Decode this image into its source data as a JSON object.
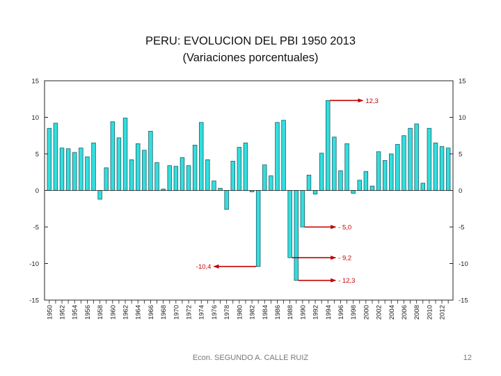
{
  "slide": {
    "title": "PERU: EVOLUCION DEL PBI 1950 2013",
    "subtitle": "(Variaciones porcentuales)",
    "footer": "Econ. SEGUNDO A. CALLE RUIZ",
    "page_number": "12"
  },
  "colors": {
    "bar_fill": "#33dede",
    "bar_stroke": "#1a5c66",
    "annotation": "#c00000",
    "axis": "#222222"
  },
  "chart_data": {
    "type": "bar",
    "title": "PERU: EVOLUCION DEL PBI 1950 2013",
    "subtitle": "(Variaciones porcentuales)",
    "xlabel": "",
    "ylabel": "",
    "ylim": [
      -15,
      15
    ],
    "yticks": [
      15,
      10,
      5,
      0,
      -5,
      -10,
      -15
    ],
    "ytick_labels": [
      "15",
      "10",
      "5",
      "0",
      "-5",
      "-10",
      "-15"
    ],
    "grid": false,
    "legend": "none",
    "categories": [
      1950,
      1951,
      1952,
      1953,
      1954,
      1955,
      1956,
      1957,
      1958,
      1959,
      1960,
      1961,
      1962,
      1963,
      1964,
      1965,
      1966,
      1967,
      1968,
      1969,
      1970,
      1971,
      1972,
      1973,
      1974,
      1975,
      1976,
      1977,
      1978,
      1979,
      1980,
      1981,
      1982,
      1983,
      1984,
      1985,
      1986,
      1987,
      1988,
      1989,
      1990,
      1991,
      1992,
      1993,
      1994,
      1995,
      1996,
      1997,
      1998,
      1999,
      2000,
      2001,
      2002,
      2003,
      2004,
      2005,
      2006,
      2007,
      2008,
      2009,
      2010,
      2011,
      2012,
      2013
    ],
    "x_tick_labels": [
      "1950",
      "1952",
      "1954",
      "1956",
      "1958",
      "1960",
      "1962",
      "1964",
      "1966",
      "1968",
      "1970",
      "1972",
      "1974",
      "1976",
      "1978",
      "1980",
      "1982",
      "1984",
      "1986",
      "1988",
      "1990",
      "1992",
      "1994",
      "1996",
      "1998",
      "2000",
      "2002",
      "2004",
      "2006",
      "2008",
      "2010",
      "2012"
    ],
    "values": [
      8.5,
      9.2,
      5.8,
      5.7,
      5.2,
      5.8,
      4.6,
      6.5,
      -1.2,
      3.1,
      9.4,
      7.2,
      9.9,
      4.2,
      6.4,
      5.5,
      8.1,
      3.8,
      0.2,
      3.4,
      3.3,
      4.5,
      3.4,
      6.2,
      9.3,
      4.2,
      1.3,
      0.3,
      -2.6,
      4.0,
      5.9,
      6.5,
      -0.2,
      -10.4,
      3.5,
      2.0,
      9.3,
      9.6,
      -9.2,
      -12.3,
      -5.0,
      2.1,
      -0.5,
      5.1,
      12.3,
      7.3,
      2.7,
      6.4,
      -0.4,
      1.4,
      2.6,
      0.6,
      5.3,
      4.1,
      5.0,
      6.3,
      7.5,
      8.5,
      9.1,
      1.0,
      8.5,
      6.5,
      6.0,
      5.8
    ],
    "annotations": [
      {
        "label": "12,3",
        "year": 1994,
        "value": 12.3
      },
      {
        "label": "- 5,0",
        "year": 1990,
        "value": -5.0
      },
      {
        "label": "- 9,2",
        "year": 1988,
        "value": -9.2
      },
      {
        "label": "-10,4",
        "year": 1983,
        "value": -10.4
      },
      {
        "label": "- 12,3",
        "year": 1989,
        "value": -12.3
      }
    ]
  }
}
